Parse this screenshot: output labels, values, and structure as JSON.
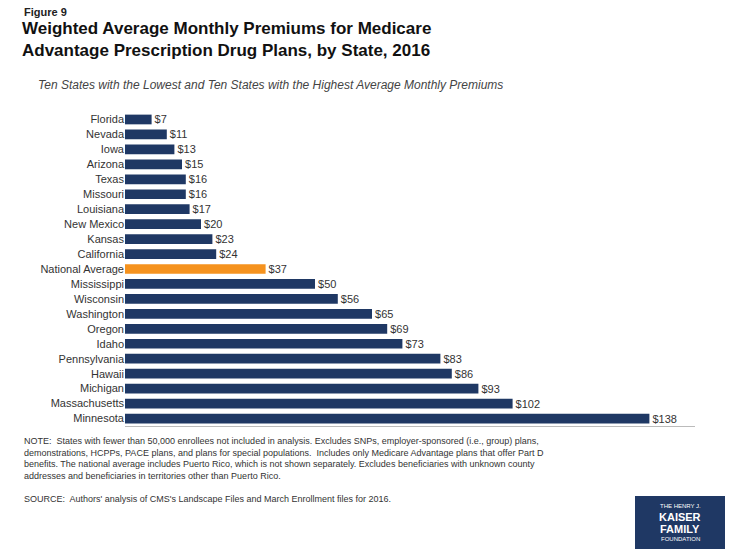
{
  "chart_data": {
    "type": "bar",
    "orientation": "horizontal",
    "figure_label": "Figure 9",
    "title": "Weighted Average Monthly Premiums for Medicare\nAdvantage Prescription Drug Plans, by State, 2016",
    "subtitle": "Ten States with the Lowest and Ten States with the Highest Average Monthly Premiums",
    "categories": [
      "Florida",
      "Nevada",
      "Iowa",
      "Arizona",
      "Texas",
      "Missouri",
      "Louisiana",
      "New Mexico",
      "Kansas",
      "California",
      "National Average",
      "Mississippi",
      "Wisconsin",
      "Washington",
      "Oregon",
      "Idaho",
      "Pennsylvania",
      "Hawaii",
      "Michigan",
      "Massachusetts",
      "Minnesota"
    ],
    "values": [
      7,
      11,
      13,
      15,
      16,
      16,
      17,
      20,
      23,
      24,
      37,
      50,
      56,
      65,
      69,
      73,
      83,
      86,
      93,
      102,
      138
    ],
    "value_labels": [
      "$7",
      "$11",
      "$13",
      "$15",
      "$16",
      "$16",
      "$17",
      "$20",
      "$23",
      "$24",
      "$37",
      "$50",
      "$56",
      "$65",
      "$69",
      "$73",
      "$83",
      "$86",
      "$93",
      "$102",
      "$138"
    ],
    "colors": [
      "#1F3864",
      "#1F3864",
      "#1F3864",
      "#1F3864",
      "#1F3864",
      "#1F3864",
      "#1F3864",
      "#1F3864",
      "#1F3864",
      "#1F3864",
      "#F5921E",
      "#1F3864",
      "#1F3864",
      "#1F3864",
      "#1F3864",
      "#1F3864",
      "#1F3864",
      "#1F3864",
      "#1F3864",
      "#1F3864",
      "#1F3864"
    ],
    "xlim": [
      0,
      150
    ],
    "data_labels": true,
    "grid": false,
    "tick_labels": "y",
    "note": "NOTE:  States with fewer than 50,000 enrollees not included in analysis. Excludes SNPs, employer-sponsored (i.e., group) plans,\ndemonstrations, HCPPs, PACE plans, and plans for special populations.  Includes only Medicare Advantage plans that offer Part D\nbenefits. The national average includes Puerto Rico, which is not shown separately. Excludes beneficiaries with unknown county\naddresses and beneficiaries in territories other than Puerto Rico.",
    "source": "SOURCE:  Authors' analysis of CMS's Landscape Files and March Enrollment files for 2016.",
    "logo_text": [
      "THE HENRY J.",
      "KAISER",
      "FAMILY",
      "FOUNDATION"
    ]
  }
}
